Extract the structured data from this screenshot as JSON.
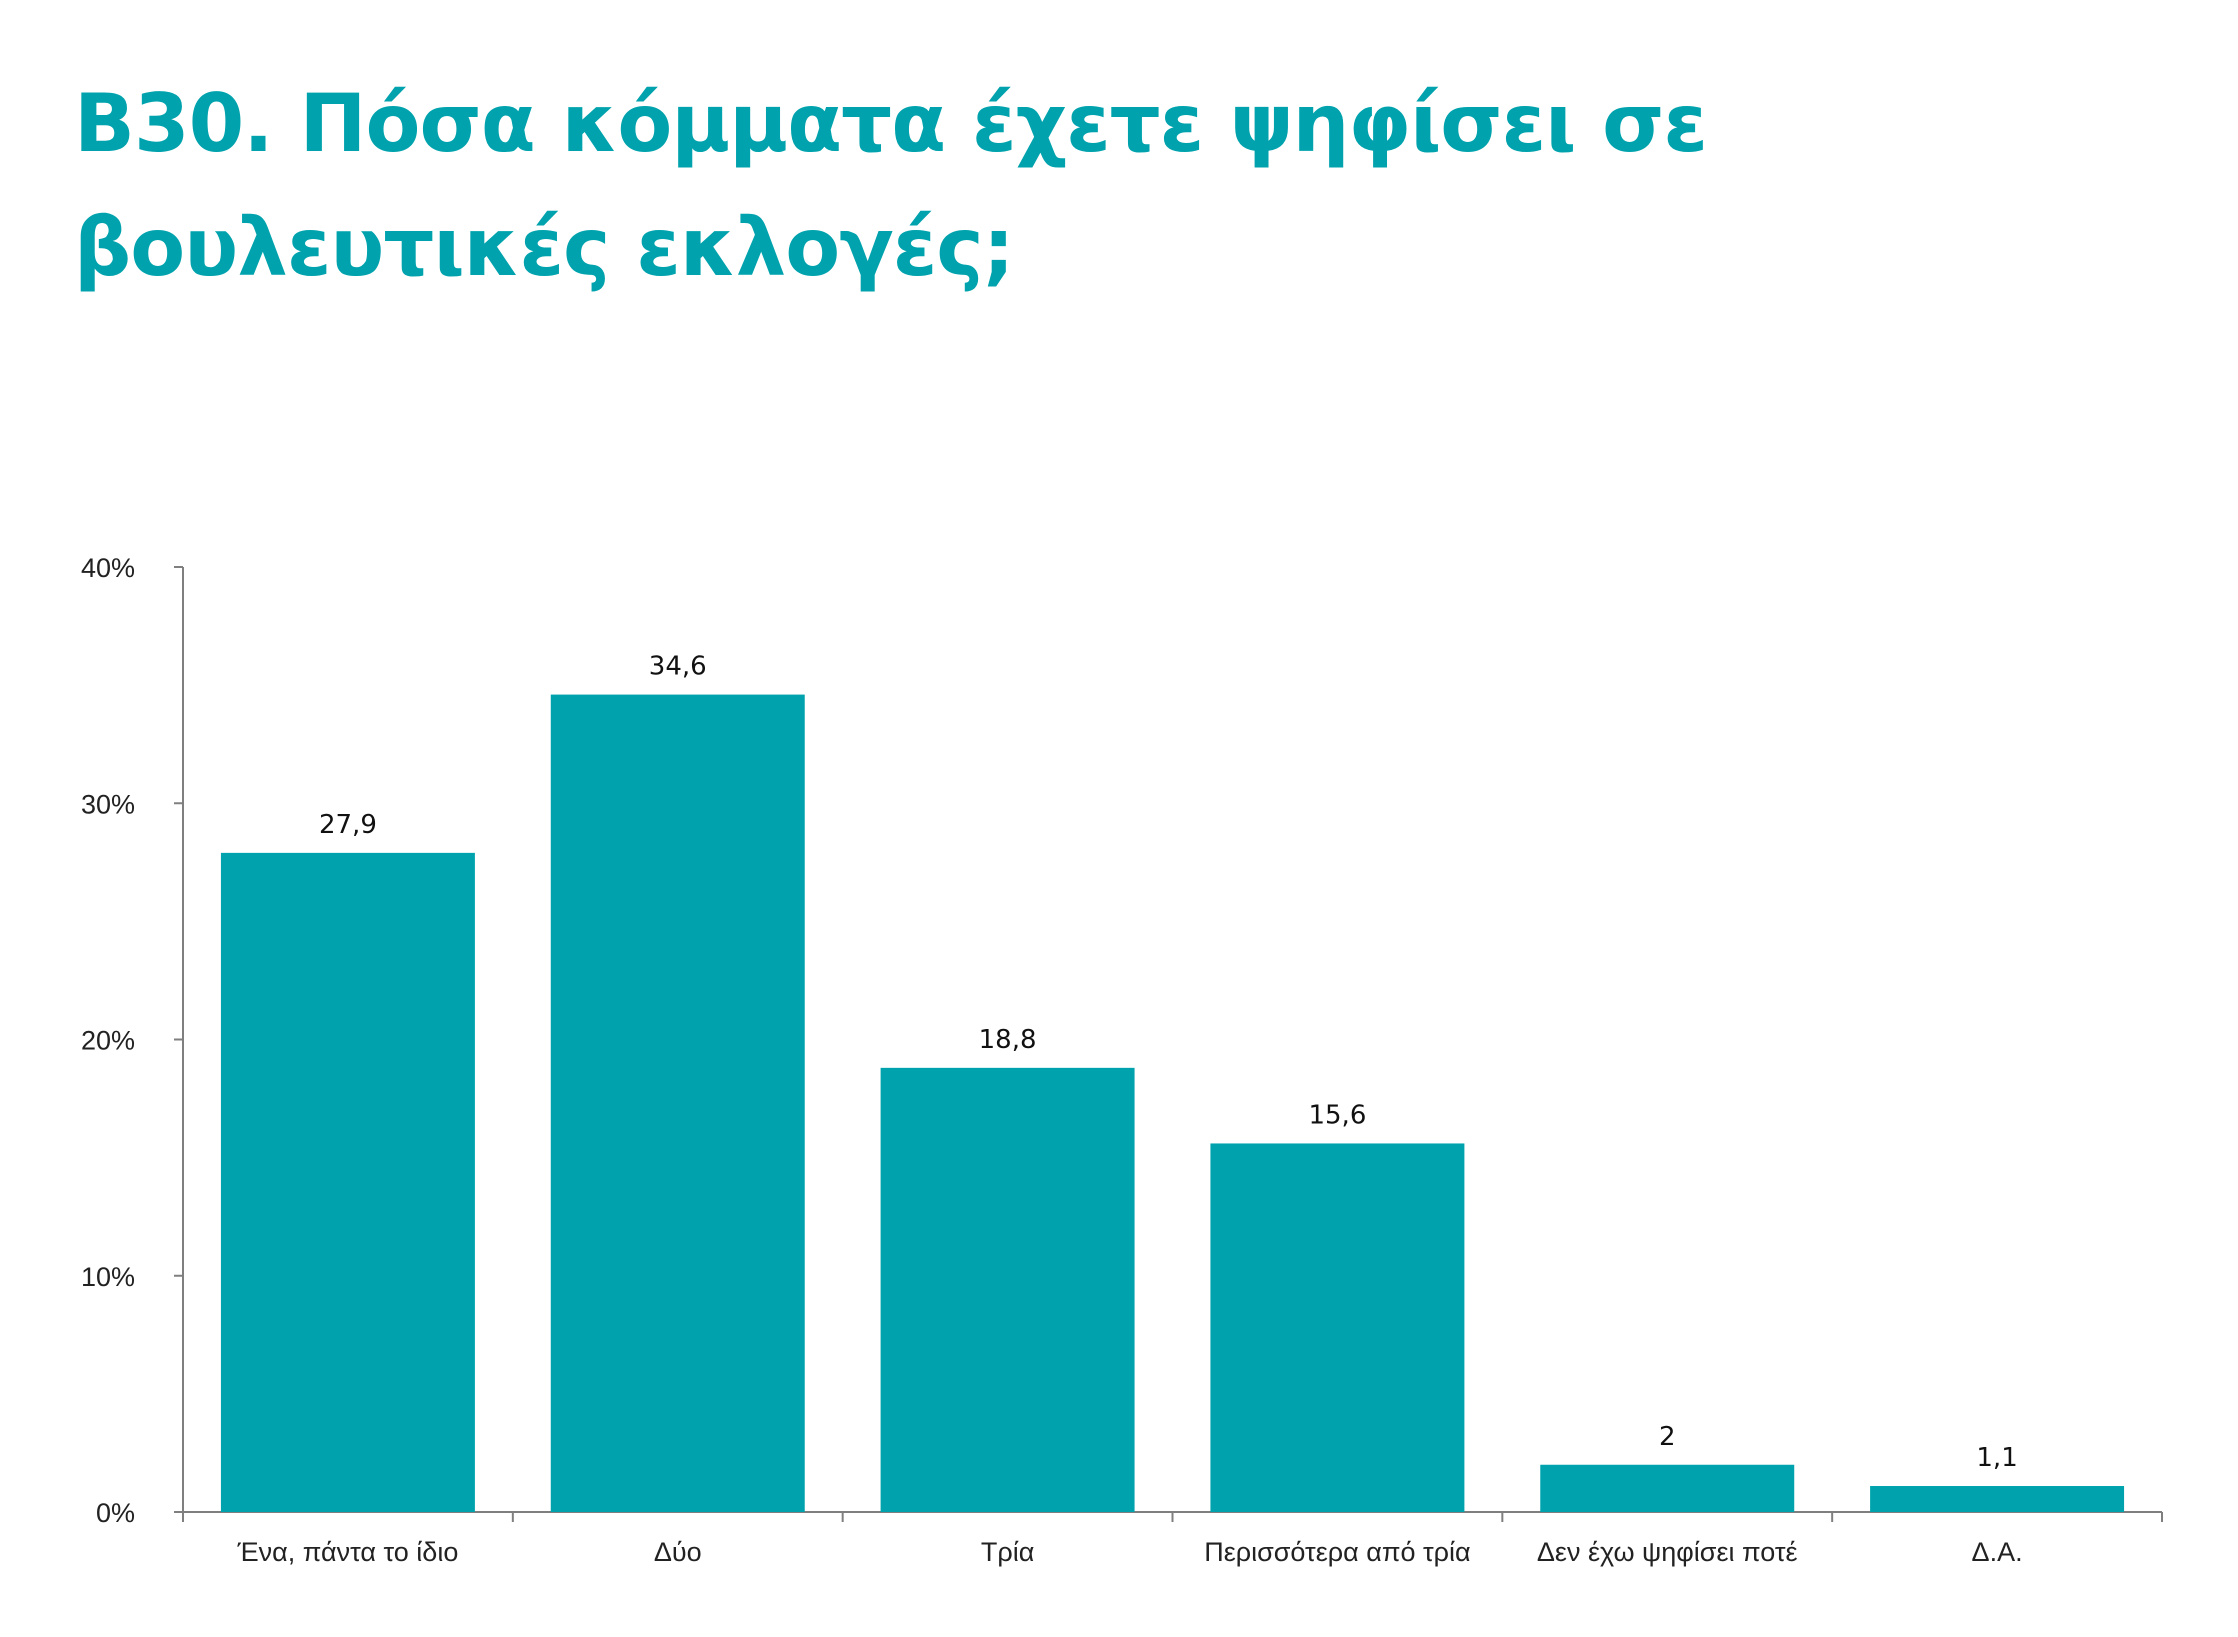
{
  "title": "B30. Πόσα κόμματα έχετε ψηφίσει σε βουλευτικές εκλογές;",
  "colors": {
    "title": "#00A3AD",
    "bar": "#00A3AD",
    "axis": "#7F7F7F"
  },
  "chart_data": {
    "type": "bar",
    "title": "B30. Πόσα κόμματα έχετε ψηφίσει σε βουλευτικές εκλογές;",
    "categories": [
      "Ένα, πάντα το ίδιο",
      "Δύο",
      "Τρία",
      "Περισσότερα από τρία",
      "Δεν έχω ψηφίσει ποτέ",
      "Δ.Α."
    ],
    "values": [
      27.9,
      34.6,
      18.8,
      15.6,
      2,
      1.1
    ],
    "value_labels": [
      "27,9",
      "34,6",
      "18,8",
      "15,6",
      "2",
      "1,1"
    ],
    "ylim": [
      0,
      40
    ],
    "yticks": [
      0,
      10,
      20,
      30,
      40
    ],
    "ytick_labels": [
      "0%",
      "10%",
      "20%",
      "30%",
      "40%"
    ],
    "xlabel": "",
    "ylabel": "",
    "grid": false,
    "legend": "none"
  }
}
